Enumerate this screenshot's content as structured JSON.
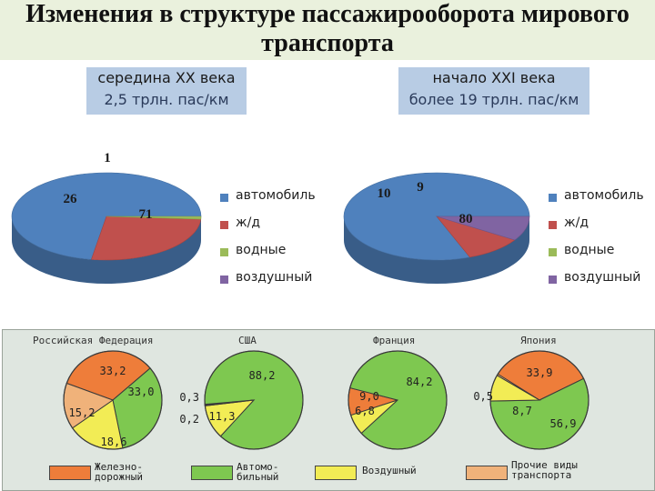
{
  "title": "Изменения в структуре пассажирооборота мирового транспорта",
  "colors": {
    "auto": "#4f81bd",
    "rail": "#c0504d",
    "water": "#9bbb59",
    "air": "#8064a2",
    "rail2": "#ee7d3a",
    "auto2": "#7ec850",
    "air2": "#f2ec55",
    "other2": "#f0b27a"
  },
  "chart_data": [
    {
      "type": "pie",
      "title": "середина XX века",
      "subtitle": "2,5 трлн. пас/км",
      "categories": [
        "автомобиль",
        "ж/д",
        "водные",
        "воздушный"
      ],
      "values": [
        71,
        26,
        1,
        null
      ],
      "data_labels": [
        "71",
        "26",
        "1",
        ""
      ],
      "legend": "right"
    },
    {
      "type": "pie",
      "title": "начало XXI века",
      "subtitle": "более 19 трлн. пас/км",
      "categories": [
        "автомобиль",
        "ж/д",
        "водные",
        "воздушный"
      ],
      "values": [
        80,
        10,
        null,
        9
      ],
      "data_labels": [
        "80",
        "10",
        "",
        "9"
      ],
      "legend": "right"
    },
    {
      "type": "pie",
      "title": "Российская Федерация",
      "categories": [
        "Железнодорожный",
        "Автомобильный",
        "Воздушный",
        "Прочие виды транспорта"
      ],
      "values": [
        33.2,
        33.0,
        18.6,
        15.2
      ],
      "data_labels": [
        "33,2",
        "33,0",
        "18,6",
        "15,2"
      ]
    },
    {
      "type": "pie",
      "title": "США",
      "categories": [
        "Железнодорожный",
        "Автомобильный",
        "Воздушный",
        "Прочие виды транспорта"
      ],
      "values": [
        0.3,
        88.2,
        11.3,
        0.2
      ],
      "data_labels": [
        "0,3",
        "88,2",
        "11,3",
        "0,2"
      ]
    },
    {
      "type": "pie",
      "title": "Франция",
      "categories": [
        "Железнодорожный",
        "Автомобильный",
        "Воздушный",
        "Прочие виды транспорта"
      ],
      "values": [
        9.0,
        84.2,
        6.8,
        null
      ],
      "data_labels": [
        "9,0",
        "84,2",
        "6,8",
        ""
      ]
    },
    {
      "type": "pie",
      "title": "Япония",
      "categories": [
        "Железнодорожный",
        "Автомобильный",
        "Воздушный",
        "Прочие виды транспорта"
      ],
      "values": [
        33.9,
        56.9,
        8.7,
        0.5
      ],
      "data_labels": [
        "33,9",
        "56,9",
        "8,7",
        "0,5"
      ]
    }
  ],
  "bottom_legend": [
    {
      "line1": "Железно-",
      "line2": "дорожный"
    },
    {
      "line1": "Автомо-",
      "line2": "бильный"
    },
    {
      "line1": "Воздушный",
      "line2": ""
    },
    {
      "line1": "Прочие виды",
      "line2": "транспорта"
    }
  ]
}
